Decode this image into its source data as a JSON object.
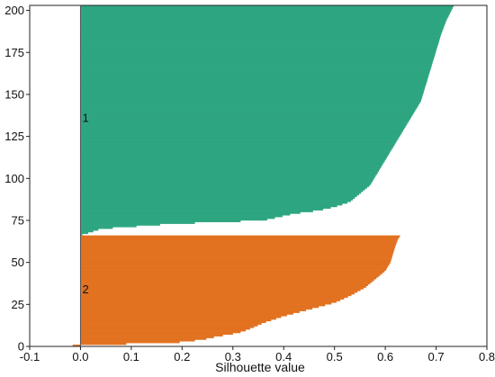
{
  "chart_data": {
    "type": "bar",
    "orientation": "horizontal",
    "title": "",
    "xlabel": "Silhouette value",
    "ylabel": "",
    "xlim": [
      -0.1,
      0.8
    ],
    "ylim": [
      0,
      203
    ],
    "x_ticks": [
      -0.1,
      0,
      0.1,
      0.2,
      0.3,
      0.4,
      0.5,
      0.6,
      0.7,
      0.8
    ],
    "x_tick_labels": [
      "-0.1",
      "0.0",
      "0.1",
      "0.2",
      "0.3",
      "0.4",
      "0.5",
      "0.6",
      "0.7",
      "0.8"
    ],
    "y_ticks": [
      0,
      25,
      50,
      75,
      100,
      125,
      150,
      175,
      200
    ],
    "y_tick_labels": [
      "0",
      "25",
      "50",
      "75",
      "100",
      "125",
      "150",
      "175",
      "200"
    ],
    "grid": false,
    "legend": "none",
    "series": [
      {
        "name": "1",
        "color": "#2ca580",
        "y_start": 66,
        "y_end": 203,
        "profile": [
          [
            0,
            -0.003
          ],
          [
            1,
            0.01
          ],
          [
            2,
            0.02
          ],
          [
            4,
            0.04
          ],
          [
            7,
            0.18
          ],
          [
            9,
            0.36
          ],
          [
            13,
            0.42
          ],
          [
            15,
            0.47
          ],
          [
            17,
            0.5
          ],
          [
            20,
            0.53
          ],
          [
            25,
            0.55
          ],
          [
            30,
            0.57
          ],
          [
            40,
            0.59
          ],
          [
            50,
            0.61
          ],
          [
            60,
            0.63
          ],
          [
            70,
            0.65
          ],
          [
            80,
            0.67
          ],
          [
            90,
            0.68
          ],
          [
            100,
            0.69
          ],
          [
            110,
            0.7
          ],
          [
            120,
            0.71
          ],
          [
            128,
            0.72
          ],
          [
            134,
            0.73
          ],
          [
            137,
            0.735
          ]
        ],
        "label_y": 136
      },
      {
        "name": "2",
        "color": "#e2711f",
        "y_start": 0,
        "y_end": 66,
        "profile": [
          [
            0,
            -0.03
          ],
          [
            1,
            0.0
          ],
          [
            2,
            0.18
          ],
          [
            4,
            0.24
          ],
          [
            6,
            0.27
          ],
          [
            8,
            0.31
          ],
          [
            10,
            0.33
          ],
          [
            14,
            0.36
          ],
          [
            18,
            0.4
          ],
          [
            22,
            0.45
          ],
          [
            26,
            0.5
          ],
          [
            30,
            0.53
          ],
          [
            35,
            0.56
          ],
          [
            40,
            0.58
          ],
          [
            45,
            0.6
          ],
          [
            50,
            0.61
          ],
          [
            55,
            0.615
          ],
          [
            60,
            0.62
          ],
          [
            64,
            0.625
          ],
          [
            66,
            0.63
          ]
        ],
        "label_y": 34
      }
    ]
  }
}
